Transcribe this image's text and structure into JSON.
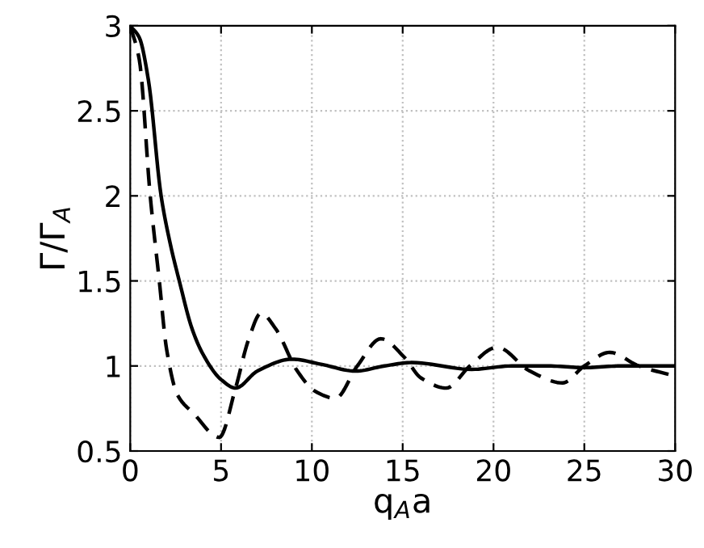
{
  "chart_data": {
    "type": "line",
    "xlabel": "q$_{A}$a",
    "ylabel": "Γ/Γ$_{A}$",
    "xlim": [
      0,
      30
    ],
    "ylim": [
      0.5,
      3
    ],
    "xticks": [
      0,
      5,
      10,
      15,
      20,
      25,
      30
    ],
    "yticks": [
      0.5,
      1,
      1.5,
      2,
      2.5,
      3
    ],
    "grid": true,
    "marker": "none",
    "series": [
      {
        "color": "#000000",
        "line_style": "solid",
        "x": [
          0,
          0.5,
          1,
          1.7,
          2.2,
          2.7,
          3.4,
          4,
          5,
          5.8,
          7,
          8.9,
          10.5,
          12.4,
          14,
          15.5,
          18.8,
          21,
          23,
          25,
          27,
          30
        ],
        "values": [
          3,
          2.93,
          2.68,
          2.0,
          1.72,
          1.5,
          1.22,
          1.07,
          0.92,
          0.87,
          0.97,
          1.04,
          1.01,
          0.97,
          1.0,
          1.02,
          0.98,
          1.0,
          1.0,
          0.99,
          1.0,
          1.0
        ]
      },
      {
        "color": "#000000",
        "line_style": "dashed",
        "x": [
          0,
          0.5,
          1.1,
          1.6,
          2.0,
          2.6,
          3.5,
          4.9,
          5.8,
          6.5,
          7.2,
          8,
          9.2,
          10.2,
          11.3,
          12.5,
          13.8,
          15.1,
          16,
          17.4,
          18.7,
          20.2,
          22,
          23.8,
          25,
          26.4,
          28,
          30
        ],
        "values": [
          3,
          2.8,
          2.0,
          1.5,
          1.1,
          0.83,
          0.72,
          0.58,
          0.87,
          1.15,
          1.31,
          1.22,
          0.97,
          0.85,
          0.81,
          1.0,
          1.16,
          1.05,
          0.93,
          0.87,
          1.0,
          1.11,
          0.97,
          0.9,
          1.0,
          1.08,
          1.0,
          0.94
        ]
      }
    ]
  }
}
